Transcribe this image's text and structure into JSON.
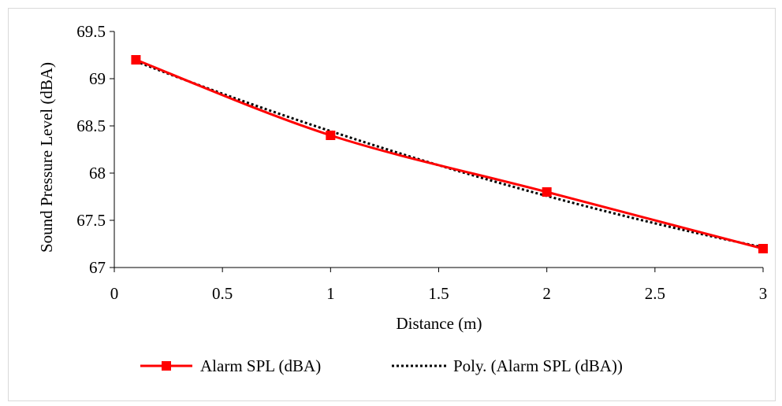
{
  "chart_data": {
    "type": "line",
    "xlabel": "Distance (m)",
    "ylabel": "Sound Pressure Level (dBA)",
    "xlim": [
      0,
      3
    ],
    "ylim": [
      67,
      69.5
    ],
    "x_ticks": [
      0,
      0.5,
      1,
      1.5,
      2,
      2.5,
      3
    ],
    "x_tick_labels": [
      "0",
      "0.5",
      "1",
      "1.5",
      "2",
      "2.5",
      "3"
    ],
    "y_ticks": [
      67,
      67.5,
      68,
      68.5,
      69,
      69.5
    ],
    "y_tick_labels": [
      "67",
      "67.5",
      "68",
      "68.5",
      "69",
      "69.5"
    ],
    "grid": false,
    "legend_position": "bottom",
    "series": [
      {
        "name": "Alarm SPL (dBA)",
        "x": [
          0.1,
          1,
          2,
          3
        ],
        "y": [
          69.2,
          68.4,
          67.8,
          67.2
        ],
        "color": "#ff0000",
        "marker": "square",
        "line_style": "smooth-solid"
      },
      {
        "name": "Poly. (Alarm SPL (dBA))",
        "type": "polynomial-trendline",
        "order": 2,
        "color": "#000000",
        "line_style": "dotted"
      }
    ]
  }
}
